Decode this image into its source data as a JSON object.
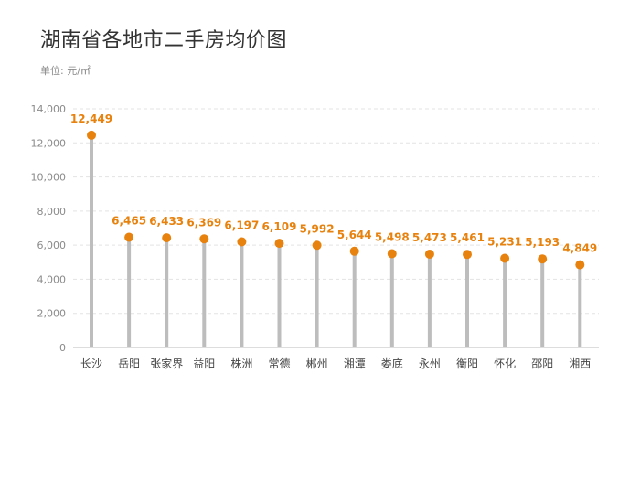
{
  "title": "湖南省各地市二手房均价图",
  "subtitle": "单位: 元/㎡",
  "colors": {
    "point": "#e8820e",
    "stem": "#bdbdbd",
    "label": "#e8820e",
    "grid": "#e3e3e3",
    "axis": "#bbbbbb"
  },
  "chart_data": {
    "type": "lollipop",
    "categories": [
      "长沙",
      "岳阳",
      "张家界",
      "益阳",
      "株洲",
      "常德",
      "郴州",
      "湘潭",
      "娄底",
      "永州",
      "衡阳",
      "怀化",
      "邵阳",
      "湘西"
    ],
    "values": [
      12449,
      6465,
      6433,
      6369,
      6197,
      6109,
      5992,
      5644,
      5498,
      5473,
      5461,
      5231,
      5193,
      4849
    ],
    "value_labels": [
      "12,449",
      "6,465",
      "6,433",
      "6,369",
      "6,197",
      "6,109",
      "5,992",
      "5,644",
      "5,498",
      "5,473",
      "5,461",
      "5,231",
      "5,193",
      "4,849"
    ],
    "ylim": [
      0,
      14000
    ],
    "yticks": [
      0,
      2000,
      4000,
      6000,
      8000,
      10000,
      12000,
      14000
    ],
    "ytick_labels": [
      "0",
      "2,000",
      "4,000",
      "6,000",
      "8,000",
      "10,000",
      "12,000",
      "14,000"
    ],
    "grid": true,
    "legend": "none"
  }
}
